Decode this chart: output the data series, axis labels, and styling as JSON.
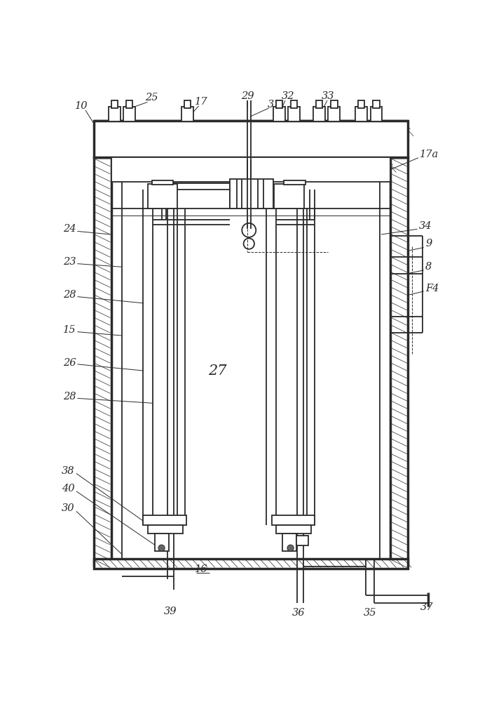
{
  "bg_color": "#ffffff",
  "line_color": "#2a2a2a",
  "fig_width": 7.15,
  "fig_height": 10.0,
  "lw_main": 1.3,
  "lw_thick": 2.5,
  "lw_thin": 0.7,
  "lw_hatch": 0.5
}
